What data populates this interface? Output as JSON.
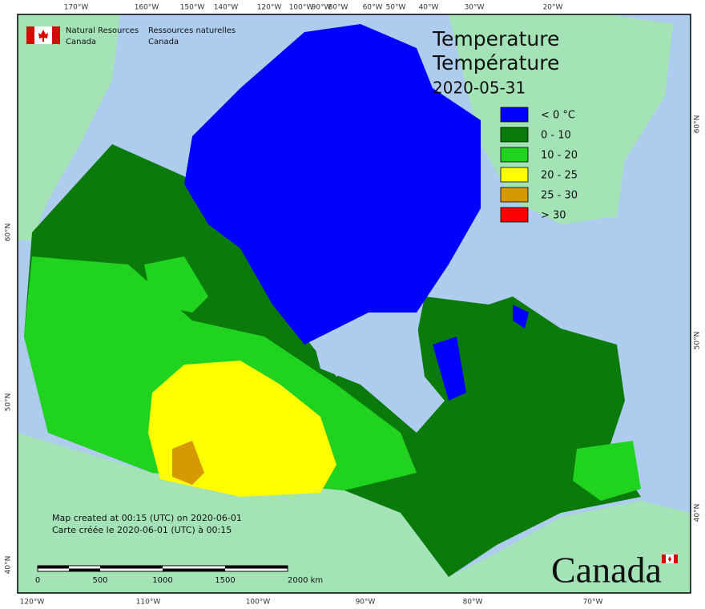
{
  "header": {
    "org_en": [
      "Natural Resources",
      "Canada"
    ],
    "org_fr": [
      "Ressources naturelles",
      "Canada"
    ]
  },
  "title": [
    "Temperature",
    "Température"
  ],
  "date": "2020-05-31",
  "legend": [
    {
      "label": "< 0 °C",
      "color": "#0000ff"
    },
    {
      "label": "0 - 10",
      "color": "#0a7a0a"
    },
    {
      "label": "10 - 20",
      "color": "#1fd31f"
    },
    {
      "label": "20 - 25",
      "color": "#ffff00"
    },
    {
      "label": "25 - 30",
      "color": "#d69a00"
    },
    {
      "label": "> 30",
      "color": "#ff0000"
    }
  ],
  "notes": [
    "Map created at 00:15 (UTC) on 2020-06-01",
    "Carte créée le 2020-06-01 (UTC) à 00:15"
  ],
  "scale_bar": [
    "0",
    "500",
    "1000",
    "1500",
    "2000  km"
  ],
  "wordmark": "Canada",
  "graticule": {
    "top": [
      "170°W",
      "160°W",
      "150°W",
      "140°W",
      "120°W",
      "100°W",
      "90°W",
      "80°W",
      "60°W",
      "50°W",
      "40°W",
      "30°W",
      "20°W"
    ],
    "bottom": [
      "120°W",
      "110°W",
      "100°W",
      "90°W",
      "80°W",
      "70°W"
    ],
    "left": [
      "60°N",
      "50°N",
      "40°N"
    ],
    "right": [
      "60°N",
      "50°N",
      "40°N"
    ]
  }
}
